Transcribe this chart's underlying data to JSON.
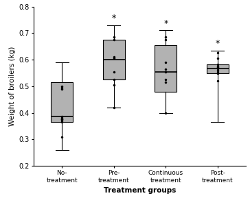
{
  "groups": [
    "No-\ntreatment",
    "Pre-\ntreatment",
    "Continuous\ntreatment",
    "Post-\ntreatment"
  ],
  "box_data": {
    "No-\ntreatment": {
      "whisker_low": 0.26,
      "q1": 0.365,
      "median": 0.385,
      "q3": 0.515,
      "whisker_high": 0.59,
      "points": [
        0.5,
        0.495,
        0.49,
        0.385,
        0.38,
        0.375,
        0.375,
        0.37,
        0.365,
        0.31
      ]
    },
    "Pre-\ntreatment": {
      "whisker_low": 0.42,
      "q1": 0.525,
      "median": 0.6,
      "q3": 0.675,
      "whisker_high": 0.73,
      "points": [
        0.685,
        0.675,
        0.61,
        0.605,
        0.555,
        0.525,
        0.505,
        0.42
      ]
    },
    "Continuous\ntreatment": {
      "whisker_low": 0.4,
      "q1": 0.48,
      "median": 0.555,
      "q3": 0.655,
      "whisker_high": 0.71,
      "points": [
        0.685,
        0.675,
        0.59,
        0.565,
        0.555,
        0.525,
        0.515,
        0.4
      ]
    },
    "Post-\ntreatment": {
      "whisker_low": 0.365,
      "q1": 0.548,
      "median": 0.568,
      "q3": 0.583,
      "whisker_high": 0.635,
      "points": [
        0.625,
        0.605,
        0.583,
        0.575,
        0.572,
        0.568,
        0.56,
        0.552,
        0.548,
        0.52
      ]
    }
  },
  "sig_groups": [
    "Pre-\ntreatment",
    "Continuous\ntreatment",
    "Post-\ntreatment"
  ],
  "ylim": [
    0.2,
    0.8
  ],
  "yticks": [
    0.2,
    0.3,
    0.4,
    0.5,
    0.6,
    0.7,
    0.8
  ],
  "ylabel": "Weight of broilers (kg)",
  "xlabel": "Treatment groups",
  "box_color": "#b2b2b2",
  "box_edge_color": "#000000",
  "whisker_color": "#000000",
  "median_color": "#000000",
  "point_color": "#000000",
  "background_color": "#ffffff",
  "figsize": [
    3.64,
    2.89
  ],
  "dpi": 100
}
